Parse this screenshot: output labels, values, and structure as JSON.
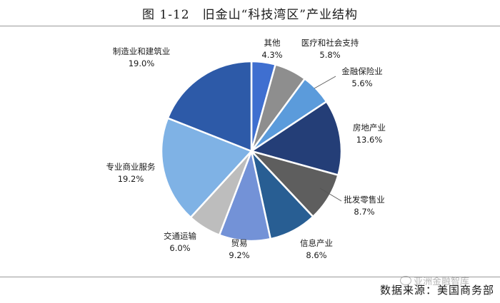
{
  "title": "图 1-12　旧金山“科技湾区”产业结构",
  "source": "数据来源：美国商务部",
  "watermark": "亚洲金融智库",
  "chart_data": {
    "type": "pie",
    "title": "图 1-12　旧金山“科技湾区”产业结构",
    "legend": "none",
    "slices": [
      {
        "label": "其他",
        "value": 4.3,
        "display": "4.3%",
        "color": "#3F6FD0"
      },
      {
        "label": "医疗和社会支持",
        "value": 5.8,
        "display": "5.8%",
        "color": "#8E8E8E"
      },
      {
        "label": "金融保险业",
        "value": 5.6,
        "display": "5.6%",
        "color": "#5B9BDB"
      },
      {
        "label": "房地产业",
        "value": 13.6,
        "display": "13.6%",
        "color": "#243E77"
      },
      {
        "label": "批发零售业",
        "value": 8.7,
        "display": "8.7%",
        "color": "#5E5E5E"
      },
      {
        "label": "信息产业",
        "value": 8.6,
        "display": "8.6%",
        "color": "#285E93"
      },
      {
        "label": "贸易",
        "value": 9.2,
        "display": "9.2%",
        "color": "#7392D7"
      },
      {
        "label": "交通运输",
        "value": 6.0,
        "display": "6.0%",
        "color": "#BDBDBD"
      },
      {
        "label": "专业商业服务",
        "value": 19.2,
        "display": "19.2%",
        "color": "#7FB2E5"
      },
      {
        "label": "制造业和建筑业",
        "value": 19.0,
        "display": "19.0%",
        "color": "#2D5AA8"
      }
    ]
  }
}
